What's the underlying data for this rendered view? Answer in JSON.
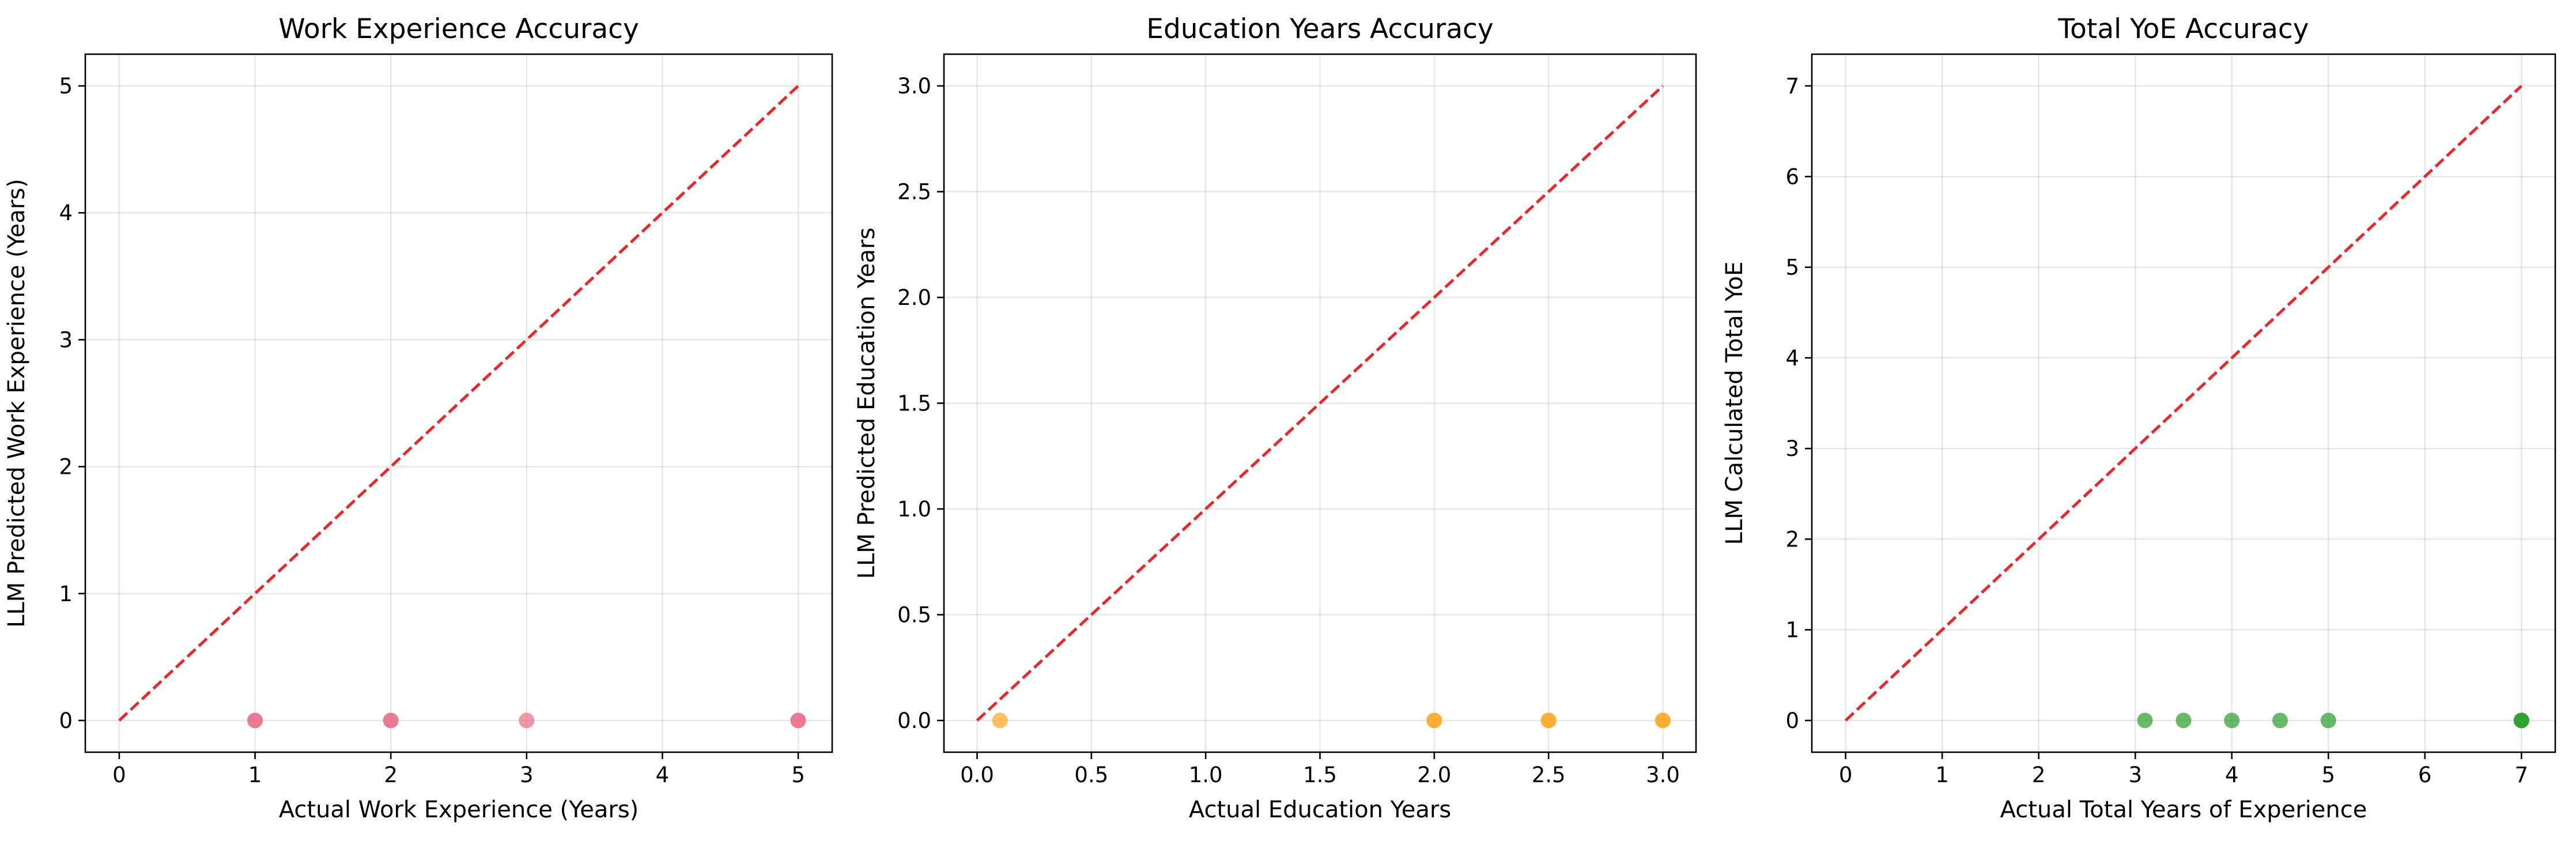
{
  "chart_data": [
    {
      "type": "scatter",
      "title": "Work Experience Accuracy",
      "xlabel": "Actual Work Experience (Years)",
      "ylabel": "LLM Predicted Work Experience (Years)",
      "xlim": [
        -0.25,
        5.25
      ],
      "ylim": [
        -0.25,
        5.25
      ],
      "xticks": [
        0,
        1,
        2,
        3,
        4,
        5
      ],
      "yticks": [
        0,
        1,
        2,
        3,
        4,
        5
      ],
      "grid": true,
      "point_color": "#e8708a",
      "reference_line": {
        "from": [
          0,
          0
        ],
        "to": [
          5,
          5
        ],
        "color": "#e8282a",
        "style": "dashed"
      },
      "points": [
        {
          "x": 1,
          "y": 0
        },
        {
          "x": 1,
          "y": 0
        },
        {
          "x": 2,
          "y": 0
        },
        {
          "x": 2,
          "y": 0
        },
        {
          "x": 3,
          "y": 0
        },
        {
          "x": 5,
          "y": 0
        },
        {
          "x": 5,
          "y": 0
        }
      ]
    },
    {
      "type": "scatter",
      "title": "Education Years Accuracy",
      "xlabel": "Actual Education Years",
      "ylabel": "LLM Predicted Education Years",
      "xlim": [
        -0.145,
        3.145
      ],
      "ylim": [
        -0.15,
        3.15
      ],
      "xticks": [
        0.0,
        0.5,
        1.0,
        1.5,
        2.0,
        2.5,
        3.0
      ],
      "yticks": [
        0.0,
        0.5,
        1.0,
        1.5,
        2.0,
        2.5,
        3.0
      ],
      "grid": true,
      "point_color": "#ffa726",
      "reference_line": {
        "from": [
          0,
          0
        ],
        "to": [
          3,
          3
        ],
        "color": "#e8282a",
        "style": "dashed"
      },
      "points": [
        {
          "x": 0.1,
          "y": 0
        },
        {
          "x": 2.0,
          "y": 0
        },
        {
          "x": 2.0,
          "y": 0
        },
        {
          "x": 2.5,
          "y": 0
        },
        {
          "x": 2.5,
          "y": 0
        },
        {
          "x": 3.0,
          "y": 0
        },
        {
          "x": 3.0,
          "y": 0
        }
      ]
    },
    {
      "type": "scatter",
      "title": "Total YoE Accuracy",
      "xlabel": "Actual Total Years of Experience",
      "ylabel": "LLM Calculated Total YoE",
      "xlim": [
        -0.35,
        7.35
      ],
      "ylim": [
        -0.35,
        7.35
      ],
      "xticks": [
        0,
        1,
        2,
        3,
        4,
        5,
        6,
        7
      ],
      "yticks": [
        0,
        1,
        2,
        3,
        4,
        5,
        6,
        7
      ],
      "grid": true,
      "point_color": "#2ca02c",
      "reference_line": {
        "from": [
          0,
          0
        ],
        "to": [
          7,
          7
        ],
        "color": "#e8282a",
        "style": "dashed"
      },
      "points": [
        {
          "x": 3.1,
          "y": 0
        },
        {
          "x": 3.5,
          "y": 0
        },
        {
          "x": 4.0,
          "y": 0
        },
        {
          "x": 4.5,
          "y": 0
        },
        {
          "x": 5.0,
          "y": 0
        },
        {
          "x": 7.0,
          "y": 0
        },
        {
          "x": 7.0,
          "y": 0
        },
        {
          "x": 7.0,
          "y": 0
        }
      ]
    }
  ]
}
